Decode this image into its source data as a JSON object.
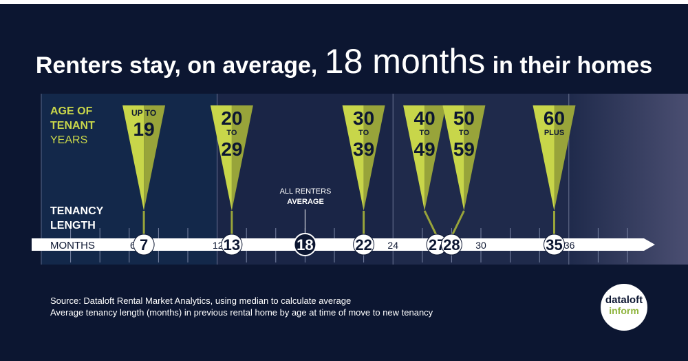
{
  "title": {
    "part1": "Renters stay, on average,",
    "highlight": "18 months",
    "part2": "in their homes"
  },
  "chart_data": {
    "type": "timeline",
    "legend": {
      "age_line1": "AGE OF",
      "age_line2": "TENANT",
      "age_line3": "YEARS",
      "tenancy_line1": "TENANCY",
      "tenancy_line2": "LENGTH",
      "axis_label": "MONTHS"
    },
    "x_axis": {
      "unit": "months",
      "xlim": [
        0,
        40
      ],
      "tick_labels": [
        6,
        12,
        24,
        30,
        36
      ],
      "section_lines": [
        12,
        24,
        36
      ]
    },
    "average": {
      "label_line1": "ALL RENTERS",
      "label_line2": "AVERAGE",
      "value": 18
    },
    "series": [
      {
        "age_top": "UP TO",
        "age_mid": "",
        "age_bottom": "19",
        "months": 7
      },
      {
        "age_top": "20",
        "age_mid": "TO",
        "age_bottom": "29",
        "months": 13
      },
      {
        "age_top": "30",
        "age_mid": "TO",
        "age_bottom": "39",
        "months": 22
      },
      {
        "age_top": "40",
        "age_mid": "TO",
        "age_bottom": "49",
        "months": 27
      },
      {
        "age_top": "50",
        "age_mid": "TO",
        "age_bottom": "59",
        "months": 28
      },
      {
        "age_top": "60",
        "age_mid": "PLUS",
        "age_bottom": "",
        "months": 35
      }
    ],
    "colors": {
      "background": "#0c1631",
      "accent_green": "#c8d64a",
      "accent_green_dark": "#98a43a",
      "arrow": "#ffffff",
      "text_dark": "#0c1631"
    }
  },
  "source": {
    "line1": "Source: Dataloft Rental Market Analytics, using median to calculate average",
    "line2": "Average tenancy length (months) in previous rental home by age at time of move to new tenancy"
  },
  "logo": {
    "line1": "dataloft",
    "line2": "inform"
  }
}
